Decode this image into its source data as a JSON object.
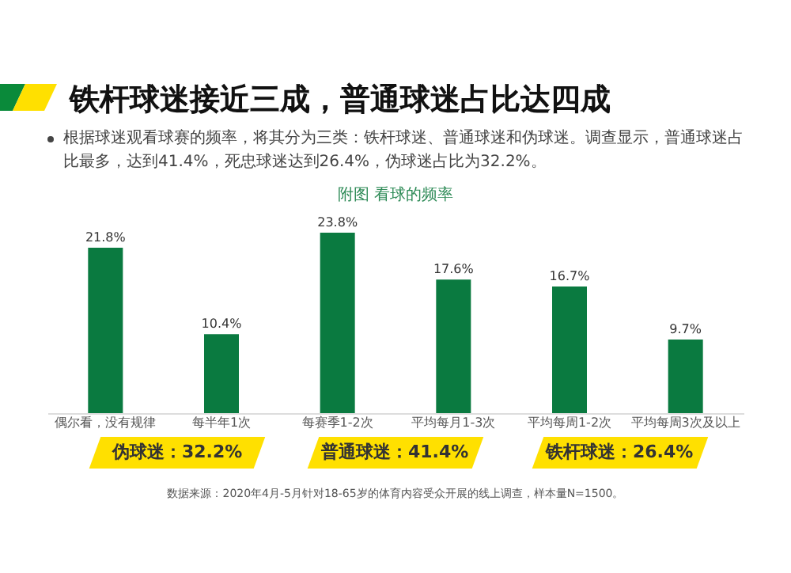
{
  "chart_data": {
    "type": "bar",
    "title": "铁杆球迷接近三成，普通球迷占比达四成",
    "subtitle": "根据球迷观看球赛的频率，将其分为三类：铁杆球迷、普通球迷和伪球迷。调查显示，普通球迷占比最多，达到41.4%，死忠球迷达到26.4%，伪球迷占比为32.2%。",
    "categories": [
      "偶尔看，没有规律",
      "每半年1次",
      "每赛季1-2次",
      "平均每月1-3次",
      "平均每周1-2次",
      "平均每周3次及以上"
    ],
    "values": [
      21.8,
      10.4,
      23.8,
      17.6,
      16.7,
      9.7
    ],
    "color": "#0a7a40",
    "value_labels": [
      "21.8%",
      "10.4%",
      "23.8%",
      "17.6%",
      "16.7%",
      "9.7%"
    ],
    "annotations": [
      "附图  看球的频率",
      "伪球迷：32.2%",
      "普通球迷：41.4%",
      "铁杆球迷：26.4%",
      "数据来源：2020年4月-5月针对18-65岁的体育内容受众开展的线上调查，样本量N=1500。"
    ]
  }
}
